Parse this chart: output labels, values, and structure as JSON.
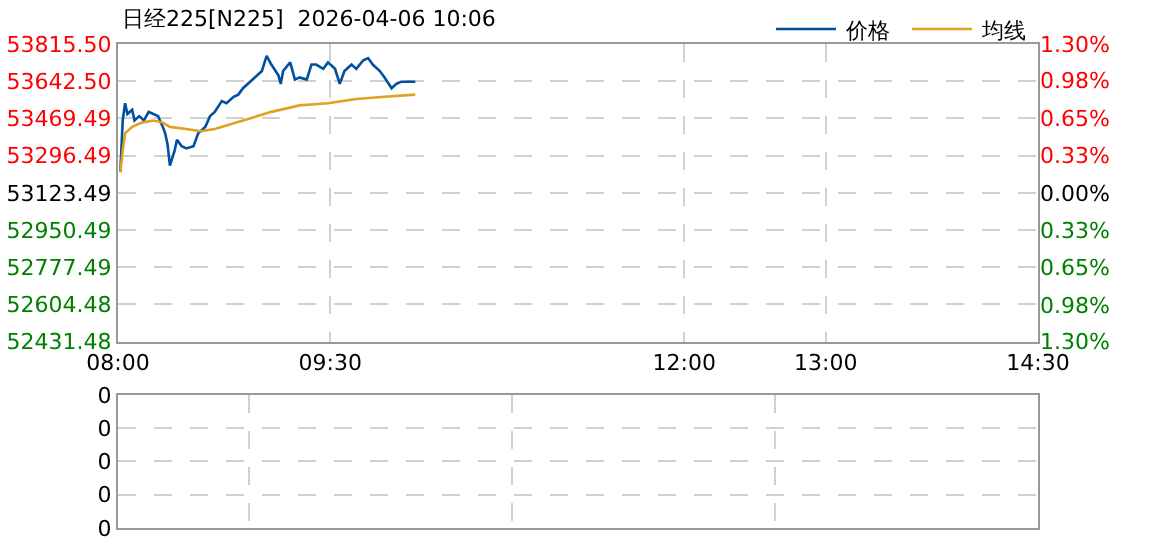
{
  "chart_data": [
    {
      "type": "line",
      "title": "日经225[N225]  2026-04-06 10:06",
      "legend": "top right",
      "grid": true,
      "line_style": "solid",
      "xlim": [
        "2026-04-06T08:00",
        "2026-04-06T14:30"
      ],
      "xticks": [
        {
          "value": "2026-04-06T08:00",
          "label": "08:00"
        },
        {
          "value": "2026-04-06T09:30",
          "label": "09:30"
        },
        {
          "value": "2026-04-06T12:00",
          "label": "12:00"
        },
        {
          "value": "2026-04-06T13:00",
          "label": "13:00"
        },
        {
          "value": "2026-04-06T14:30",
          "label": "14:30"
        }
      ],
      "ylim": [
        52431.48,
        53815.5
      ],
      "yticks": [
        52431.48,
        52604.48,
        52777.49,
        52950.49,
        53123.49,
        53296.49,
        53469.49,
        {
          "value": 53642.5,
          "label": "53642.50"
        },
        {
          "value": 53815.5,
          "label": "53815.50"
        }
      ],
      "y2lim": [
        -1.3,
        1.3
      ],
      "y2ticks": [
        {
          "value": -1.3,
          "label": "1.30%"
        },
        {
          "value": -0.98,
          "label": "0.98%"
        },
        {
          "value": -0.65,
          "label": "0.65%"
        },
        {
          "value": -0.33,
          "label": "0.33%"
        },
        {
          "value": 0,
          "label": "0.00%"
        },
        {
          "value": 0.33,
          "label": "0.33%"
        },
        {
          "value": 0.65,
          "label": "0.65%"
        },
        {
          "value": 0.98,
          "label": "0.98%"
        },
        {
          "value": 1.3,
          "label": "1.30%"
        }
      ],
      "series": [
        {
          "name": "价格",
          "color": "#0050a0",
          "x": [
            "2026-04-06T08:01",
            "2026-04-06T08:02",
            "2026-04-06T08:03",
            "2026-04-06T08:04",
            "2026-04-06T08:06",
            "2026-04-06T08:07",
            "2026-04-06T08:09",
            "2026-04-06T08:11",
            "2026-04-06T08:13",
            "2026-04-06T08:15",
            "2026-04-06T08:17",
            "2026-04-06T08:19",
            "2026-04-06T08:20",
            "2026-04-06T08:21",
            "2026-04-06T08:22",
            "2026-04-06T08:24",
            "2026-04-06T08:25",
            "2026-04-06T08:27",
            "2026-04-06T08:29",
            "2026-04-06T08:32",
            "2026-04-06T08:34",
            "2026-04-06T08:37",
            "2026-04-06T08:39",
            "2026-04-06T08:41",
            "2026-04-06T08:44",
            "2026-04-06T08:46",
            "2026-04-06T08:49",
            "2026-04-06T08:51",
            "2026-04-06T08:53",
            "2026-04-06T08:56",
            "2026-04-06T08:58",
            "2026-04-06T09:01",
            "2026-04-06T09:03",
            "2026-04-06T09:05",
            "2026-04-06T09:08",
            "2026-04-06T09:09",
            "2026-04-06T09:10",
            "2026-04-06T09:13",
            "2026-04-06T09:15",
            "2026-04-06T09:17",
            "2026-04-06T09:20",
            "2026-04-06T09:22",
            "2026-04-06T09:24",
            "2026-04-06T09:27",
            "2026-04-06T09:29",
            "2026-04-06T09:32",
            "2026-04-06T09:34",
            "2026-04-06T09:36",
            "2026-04-06T09:39",
            "2026-04-06T09:41",
            "2026-04-06T09:44",
            "2026-04-06T09:46",
            "2026-04-06T09:48",
            "2026-04-06T09:51",
            "2026-04-06T09:53",
            "2026-04-06T09:56",
            "2026-04-06T09:58",
            "2026-04-06T10:00",
            "2026-04-06T10:03",
            "2026-04-06T10:06"
          ],
          "values": [
            53220,
            53460,
            53540,
            53490,
            53510,
            53460,
            53480,
            53460,
            53500,
            53490,
            53480,
            53430,
            53400,
            53350,
            53250,
            53320,
            53370,
            53340,
            53330,
            53340,
            53400,
            53430,
            53480,
            53500,
            53550,
            53540,
            53570,
            53580,
            53610,
            53640,
            53660,
            53690,
            53760,
            53720,
            53670,
            53630,
            53690,
            53730,
            53650,
            53660,
            53650,
            53720,
            53720,
            53700,
            53730,
            53700,
            53630,
            53690,
            53720,
            53700,
            53740,
            53750,
            53720,
            53690,
            53660,
            53610,
            53630,
            53640,
            53640,
            53640
          ]
        },
        {
          "name": "均线",
          "color": "#e0a020",
          "x": [
            "2026-04-06T08:01",
            "2026-04-06T08:02",
            "2026-04-06T08:03",
            "2026-04-06T08:06",
            "2026-04-06T08:10",
            "2026-04-06T08:15",
            "2026-04-06T08:19",
            "2026-04-06T08:22",
            "2026-04-06T08:29",
            "2026-04-06T08:35",
            "2026-04-06T08:41",
            "2026-04-06T08:53",
            "2026-04-06T09:05",
            "2026-04-06T09:17",
            "2026-04-06T09:29",
            "2026-04-06T09:41",
            "2026-04-06T09:53",
            "2026-04-06T10:06"
          ],
          "values": [
            53220,
            53320,
            53400,
            53430,
            53450,
            53460,
            53450,
            53430,
            53420,
            53410,
            53420,
            53460,
            53500,
            53530,
            53540,
            53560,
            53570,
            53580
          ]
        }
      ]
    },
    {
      "type": "other",
      "annotations": [
        "0",
        "0",
        "0",
        "0",
        "0"
      ]
    }
  ]
}
